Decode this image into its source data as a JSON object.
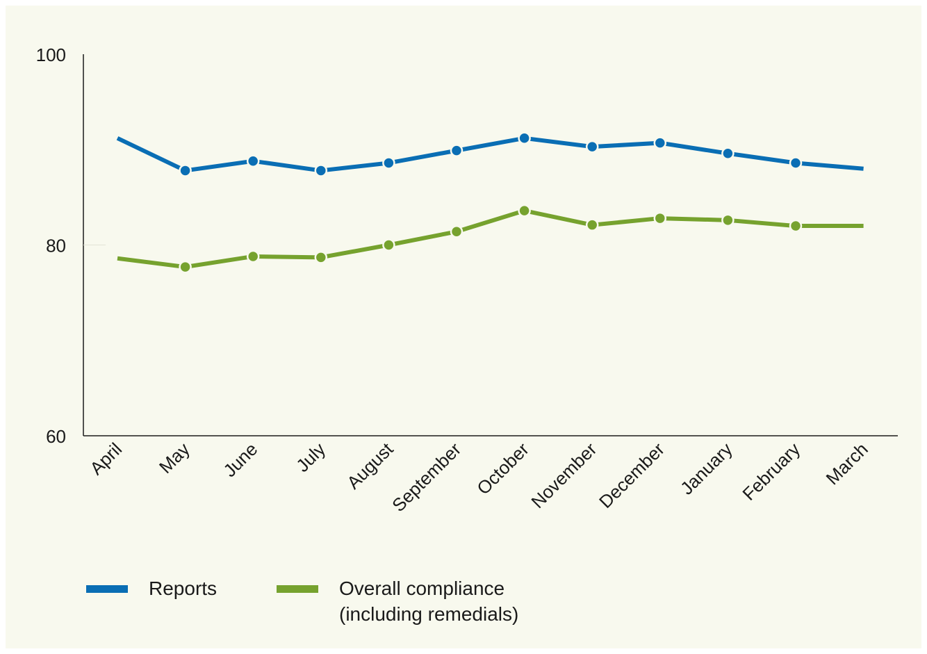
{
  "chart_data": {
    "type": "line",
    "categories": [
      "April",
      "May",
      "June",
      "July",
      "August",
      "September",
      "October",
      "November",
      "December",
      "January",
      "February",
      "March"
    ],
    "series": [
      {
        "name": "Reports",
        "color": "#0a6eb4",
        "values": [
          91.2,
          87.8,
          88.8,
          87.8,
          88.6,
          89.9,
          91.2,
          90.3,
          90.7,
          89.6,
          88.6,
          88.0
        ],
        "markers": [
          false,
          true,
          true,
          true,
          true,
          true,
          true,
          true,
          true,
          true,
          true,
          false
        ]
      },
      {
        "name": "Overall compliance (including remedials)",
        "legend_lines": [
          "Overall compliance",
          "(including remedials)"
        ],
        "color": "#76a22e",
        "values": [
          78.6,
          77.7,
          78.8,
          78.7,
          80.0,
          81.4,
          83.6,
          82.1,
          82.8,
          82.6,
          82.0,
          82.0
        ],
        "markers": [
          false,
          true,
          true,
          true,
          true,
          true,
          true,
          true,
          true,
          true,
          true,
          false
        ]
      }
    ],
    "ylim": [
      60,
      100
    ],
    "yticks": [
      {
        "value": 100,
        "label": "100"
      },
      {
        "value": 80,
        "label": "80"
      },
      {
        "value": 60,
        "label": "60"
      }
    ],
    "title": "",
    "xlabel": "",
    "ylabel": "",
    "grid": false,
    "legend_position": "bottom-left"
  }
}
